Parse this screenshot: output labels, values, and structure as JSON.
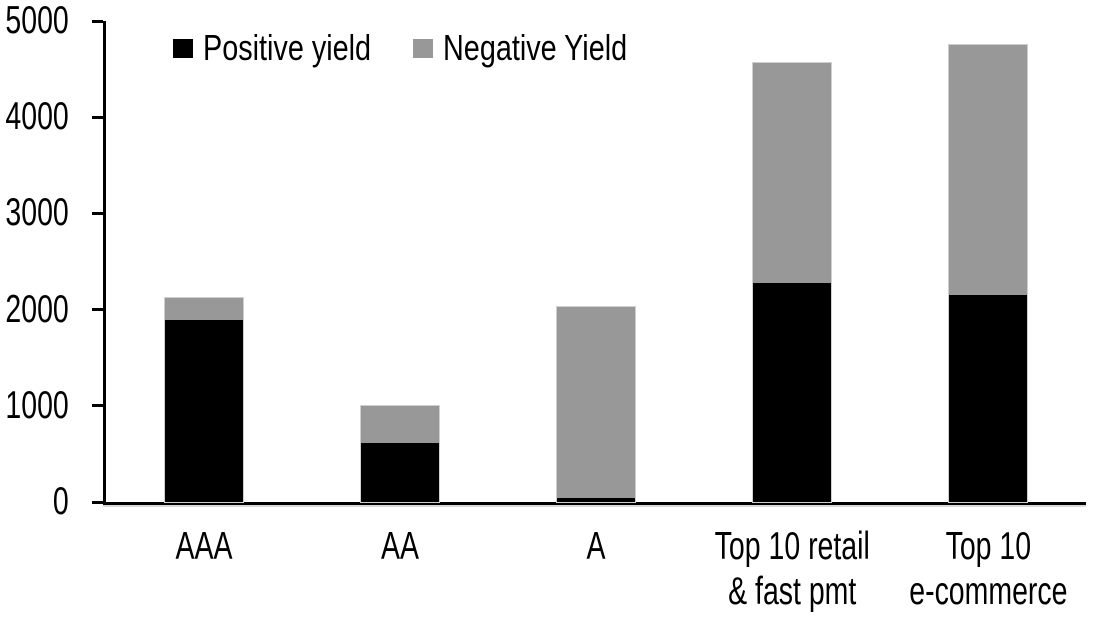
{
  "chart_data": {
    "type": "bar",
    "stacked": true,
    "title": "",
    "categories": [
      "AAA",
      "AA",
      "A",
      "Top 10 retail\n& fast pmt",
      "Top 10\ne-commerce"
    ],
    "series": [
      {
        "name": "Positive yield",
        "color": "#000000",
        "values": [
          1890,
          615,
          45,
          2280,
          2150
        ]
      },
      {
        "name": "Negative Yield",
        "color": "#989898",
        "values": [
          230,
          385,
          1985,
          2280,
          2600
        ]
      }
    ],
    "xlabel": "",
    "ylabel": "",
    "ylim": [
      0,
      5000
    ],
    "yticks": [
      0,
      1000,
      2000,
      3000,
      4000,
      5000
    ],
    "grid": false,
    "legend_position": "top-left",
    "axis_color": "#000000",
    "background_color": "#ffffff"
  }
}
